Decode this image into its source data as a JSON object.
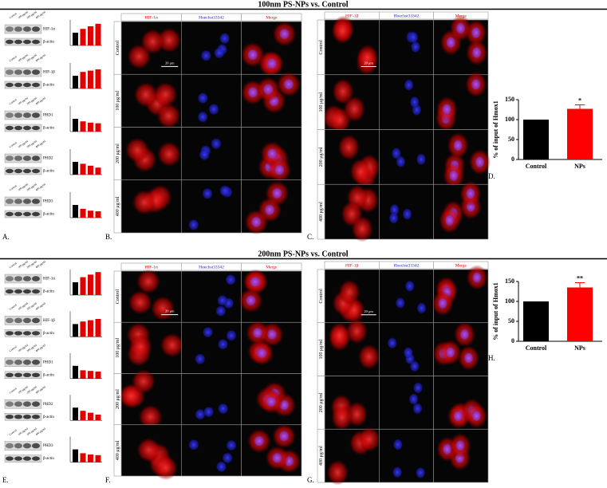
{
  "sections": [
    {
      "title": "100nm PS-NPs vs. Control",
      "letters": {
        "blots": "A.",
        "if1": "B.",
        "if2": "C.",
        "chart": "D."
      },
      "lanes": [
        "Control",
        "100 μg/ml",
        "200 μg/ml",
        "400 μg/ml"
      ],
      "blot_ylim": [
        0,
        2
      ],
      "blots": [
        {
          "protein": "HIF-1α",
          "loading": "β-actin",
          "values": [
            1,
            1.3,
            1.5,
            1.7
          ]
        },
        {
          "protein": "HIF-1β",
          "loading": "β-actin",
          "values": [
            1,
            1.3,
            1.4,
            1.5
          ]
        },
        {
          "protein": "PHD1",
          "loading": "β-actin",
          "values": [
            1,
            0.8,
            0.7,
            0.65
          ]
        },
        {
          "protein": "PHD2",
          "loading": "β-actin",
          "values": [
            1,
            0.85,
            0.7,
            0.55
          ]
        },
        {
          "protein": "PHD3",
          "loading": "β-actin",
          "values": [
            1,
            0.7,
            0.55,
            0.5
          ]
        }
      ],
      "if1": {
        "channels": [
          "HIF-1α",
          "Hoechst33342",
          "Merge"
        ],
        "rows": [
          "Control",
          "100 μg/ml",
          "200 μg/ml",
          "400 μg/ml"
        ],
        "scale": "20 μm"
      },
      "if2": {
        "channels": [
          "HIF-1β",
          "Hoechst33342",
          "Merge"
        ],
        "rows": [
          "Control",
          "100 μg/ml",
          "200 μg/ml",
          "400 μg/ml"
        ],
        "scale": "20 μm"
      },
      "chart": {
        "type": "bar",
        "ylabel": "% of input of Hmox1",
        "categories": [
          "Control",
          "NPs"
        ],
        "values": [
          100,
          127
        ],
        "errors": [
          0,
          10
        ],
        "colors": [
          "#000000",
          "#ff0000"
        ],
        "annotations": [
          null,
          "*"
        ],
        "ylim": [
          0,
          150
        ],
        "yticks": [
          0,
          50,
          100,
          150
        ]
      }
    },
    {
      "title": "200nm PS-NPs vs. Control",
      "letters": {
        "blots": "E.",
        "if1": "F.",
        "if2": "G.",
        "chart": "H."
      },
      "lanes": [
        "Control",
        "100 μg/ml",
        "200 μg/ml",
        "400 μg/ml"
      ],
      "blot_ylim": [
        0,
        2
      ],
      "blots": [
        {
          "protein": "HIF-1α",
          "loading": "β-actin",
          "values": [
            1,
            1.4,
            1.6,
            1.8
          ]
        },
        {
          "protein": "HIF-1β",
          "loading": "β-actin",
          "values": [
            1,
            1.2,
            1.3,
            1.4
          ]
        },
        {
          "protein": "PHD1",
          "loading": "β-actin",
          "values": [
            1,
            0.65,
            0.6,
            0.55
          ]
        },
        {
          "protein": "PHD2",
          "loading": "β-actin",
          "values": [
            1,
            0.75,
            0.6,
            0.45
          ]
        },
        {
          "protein": "PHD3",
          "loading": "β-actin",
          "values": [
            1,
            0.7,
            0.6,
            0.55
          ]
        }
      ],
      "if1": {
        "channels": [
          "HIF-1α",
          "Hoechst33342",
          "Merge"
        ],
        "rows": [
          "Control",
          "100 μg/ml",
          "200 μg/ml",
          "400 μg/ml"
        ],
        "scale": "20 μm"
      },
      "if2": {
        "channels": [
          "HIF-1β",
          "Hoechst33342",
          "Merge"
        ],
        "rows": [
          "Control",
          "100 μg/ml",
          "200 μg/ml",
          "400 μg/ml"
        ],
        "scale": "20 μm"
      },
      "chart": {
        "type": "bar",
        "ylabel": "% of input of Hmox1",
        "categories": [
          "Control",
          "NPs"
        ],
        "values": [
          100,
          135
        ],
        "errors": [
          0,
          12
        ],
        "colors": [
          "#000000",
          "#ff0000"
        ],
        "annotations": [
          null,
          "**"
        ],
        "ylim": [
          0,
          150
        ],
        "yticks": [
          0,
          50,
          100,
          150
        ]
      }
    }
  ]
}
